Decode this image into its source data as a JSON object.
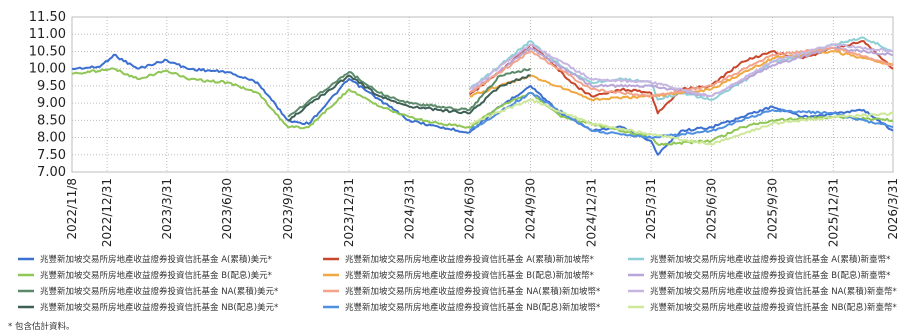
{
  "chart_data": {
    "type": "line",
    "x_range": [
      "2022-11-08",
      "2026-03-31"
    ],
    "ylim": [
      7.0,
      11.5
    ],
    "y_ticks": [
      "11.50",
      "11.00",
      "10.50",
      "10.00",
      "9.50",
      "9.00",
      "8.50",
      "8.00",
      "7.50",
      "7.00"
    ],
    "x_ticks": [
      "2022/11/8",
      "2022/12/31",
      "2023/3/31",
      "2023/6/30",
      "2023/9/30",
      "2023/12/31",
      "2024/3/31",
      "2024/6/30",
      "2024/9/30",
      "2024/12/31",
      "2025/3/31",
      "2025/6/30",
      "2025/9/30",
      "2025/12/31",
      "2026/3/31"
    ],
    "grid": true,
    "legend_position": "bottom",
    "series": [
      {
        "name": "兆豐新加坡交易所房地產收益證券投資信託基金 A(累積)美元*",
        "color": "#3b6fd0",
        "points": [
          [
            "2022-11-08",
            10.0
          ],
          [
            "2022-12-20",
            10.05
          ],
          [
            "2023-01-10",
            10.4
          ],
          [
            "2023-02-15",
            10.0
          ],
          [
            "2023-03-31",
            10.25
          ],
          [
            "2023-05-01",
            10.0
          ],
          [
            "2023-06-30",
            9.9
          ],
          [
            "2023-08-15",
            9.6
          ],
          [
            "2023-09-30",
            8.5
          ],
          [
            "2023-10-31",
            8.4
          ],
          [
            "2023-12-31",
            9.7
          ],
          [
            "2024-02-15",
            9.1
          ],
          [
            "2024-03-31",
            8.5
          ],
          [
            "2024-05-15",
            8.3
          ],
          [
            "2024-06-30",
            8.15
          ],
          [
            "2024-08-15",
            8.9
          ],
          [
            "2024-09-30",
            9.5
          ],
          [
            "2024-11-15",
            8.7
          ],
          [
            "2024-12-31",
            8.2
          ],
          [
            "2025-02-15",
            8.3
          ],
          [
            "2025-03-31",
            7.9
          ],
          [
            "2025-04-10",
            7.5
          ],
          [
            "2025-05-15",
            8.2
          ],
          [
            "2025-06-30",
            8.3
          ],
          [
            "2025-08-15",
            8.6
          ],
          [
            "2025-09-30",
            8.9
          ],
          [
            "2025-11-15",
            8.6
          ],
          [
            "2025-12-31",
            8.7
          ],
          [
            "2026-02-15",
            8.8
          ],
          [
            "2026-03-31",
            8.2
          ]
        ]
      },
      {
        "name": "兆豐新加坡交易所房地產收益證券投資信託基金 A(累積)新加坡幣*",
        "color": "#c8472c",
        "points": [
          [
            "2024-06-30",
            9.25
          ],
          [
            "2024-08-15",
            9.9
          ],
          [
            "2024-09-30",
            10.7
          ],
          [
            "2024-10-31",
            10.2
          ],
          [
            "2024-11-30",
            9.6
          ],
          [
            "2024-12-31",
            9.2
          ],
          [
            "2025-02-15",
            9.4
          ],
          [
            "2025-03-31",
            9.3
          ],
          [
            "2025-04-10",
            8.7
          ],
          [
            "2025-05-15",
            9.4
          ],
          [
            "2025-06-30",
            9.5
          ],
          [
            "2025-08-15",
            10.2
          ],
          [
            "2025-09-30",
            10.5
          ],
          [
            "2025-11-15",
            10.3
          ],
          [
            "2025-12-31",
            10.6
          ],
          [
            "2026-02-15",
            10.8
          ],
          [
            "2026-03-31",
            10.0
          ]
        ]
      },
      {
        "name": "兆豐新加坡交易所房地產收益證券投資信託基金 A(累積)新臺幣*",
        "color": "#8ecfd6",
        "points": [
          [
            "2024-06-30",
            9.4
          ],
          [
            "2024-08-15",
            10.1
          ],
          [
            "2024-09-30",
            10.8
          ],
          [
            "2024-10-31",
            10.3
          ],
          [
            "2024-11-30",
            9.9
          ],
          [
            "2024-12-31",
            9.6
          ],
          [
            "2025-02-15",
            9.7
          ],
          [
            "2025-03-31",
            9.6
          ],
          [
            "2025-04-10",
            9.1
          ],
          [
            "2025-05-15",
            9.3
          ],
          [
            "2025-06-30",
            9.1
          ],
          [
            "2025-08-15",
            9.6
          ],
          [
            "2025-09-30",
            10.2
          ],
          [
            "2025-11-15",
            10.4
          ],
          [
            "2025-12-31",
            10.7
          ],
          [
            "2026-02-15",
            10.9
          ],
          [
            "2026-03-31",
            10.5
          ]
        ]
      },
      {
        "name": "兆豐新加坡交易所房地產收益證券投資信託基金 B(配息)美元*",
        "color": "#8fc655",
        "points": [
          [
            "2022-11-08",
            9.85
          ],
          [
            "2023-01-10",
            10.0
          ],
          [
            "2023-02-15",
            9.7
          ],
          [
            "2023-03-31",
            9.95
          ],
          [
            "2023-05-01",
            9.7
          ],
          [
            "2023-06-30",
            9.6
          ],
          [
            "2023-08-15",
            9.3
          ],
          [
            "2023-09-30",
            8.3
          ],
          [
            "2023-10-31",
            8.3
          ],
          [
            "2023-12-31",
            9.4
          ],
          [
            "2024-02-15",
            8.9
          ],
          [
            "2024-03-31",
            8.6
          ],
          [
            "2024-05-15",
            8.4
          ],
          [
            "2024-06-30",
            8.3
          ],
          [
            "2024-08-15",
            8.9
          ],
          [
            "2024-09-30",
            9.3
          ],
          [
            "2024-11-15",
            8.6
          ],
          [
            "2024-12-31",
            8.4
          ],
          [
            "2025-03-31",
            8.0
          ],
          [
            "2025-04-10",
            7.8
          ],
          [
            "2025-06-30",
            7.9
          ],
          [
            "2025-08-15",
            8.3
          ],
          [
            "2025-09-30",
            8.5
          ],
          [
            "2025-12-31",
            8.6
          ],
          [
            "2026-03-31",
            8.5
          ]
        ]
      },
      {
        "name": "兆豐新加坡交易所房地產收益證券投資信託基金 B(配息)新加坡幣*",
        "color": "#f0a840",
        "points": [
          [
            "2024-06-30",
            9.2
          ],
          [
            "2024-09-30",
            9.8
          ],
          [
            "2024-12-31",
            9.1
          ],
          [
            "2025-03-31",
            9.2
          ],
          [
            "2025-06-30",
            9.4
          ],
          [
            "2025-09-30",
            10.3
          ],
          [
            "2025-12-31",
            10.5
          ],
          [
            "2026-03-31",
            10.1
          ]
        ]
      },
      {
        "name": "兆豐新加坡交易所房地產收益證券投資信託基金 B(配息)新臺幣*",
        "color": "#b9a6d8",
        "points": [
          [
            "2024-06-30",
            9.3
          ],
          [
            "2024-09-30",
            10.6
          ],
          [
            "2024-12-31",
            9.5
          ],
          [
            "2025-03-31",
            9.5
          ],
          [
            "2025-06-30",
            9.2
          ],
          [
            "2025-09-30",
            10.1
          ],
          [
            "2025-12-31",
            10.6
          ],
          [
            "2026-03-31",
            10.4
          ]
        ]
      },
      {
        "name": "兆豐新加坡交易所房地產收益證券投資信託基金 NA(累積)美元*",
        "color": "#5a8a6a",
        "points": [
          [
            "2023-09-30",
            8.6
          ],
          [
            "2023-12-31",
            9.9
          ],
          [
            "2024-02-15",
            9.3
          ],
          [
            "2024-03-31",
            9.0
          ],
          [
            "2024-05-15",
            8.9
          ],
          [
            "2024-06-30",
            8.8
          ],
          [
            "2024-08-15",
            9.8
          ],
          [
            "2024-09-30",
            10.0
          ]
        ]
      },
      {
        "name": "兆豐新加坡交易所房地產收益證券投資信託基金 NA(累積)新加坡幣*",
        "color": "#f2a38a",
        "points": [
          [
            "2024-06-30",
            9.3
          ],
          [
            "2024-09-30",
            10.5
          ],
          [
            "2024-12-31",
            9.4
          ],
          [
            "2025-03-31",
            9.2
          ],
          [
            "2025-06-30",
            9.5
          ],
          [
            "2025-09-30",
            10.4
          ],
          [
            "2025-12-31",
            10.6
          ],
          [
            "2026-03-31",
            10.1
          ]
        ]
      },
      {
        "name": "兆豐新加坡交易所房地產收益證券投資信託基金 NA(累積)新臺幣*",
        "color": "#c8b6e2",
        "points": [
          [
            "2024-06-30",
            9.4
          ],
          [
            "2024-09-30",
            10.7
          ],
          [
            "2024-12-31",
            9.7
          ],
          [
            "2025-03-31",
            9.6
          ],
          [
            "2025-06-30",
            9.2
          ],
          [
            "2025-09-30",
            10.2
          ],
          [
            "2025-12-31",
            10.7
          ],
          [
            "2026-03-31",
            10.5
          ]
        ]
      },
      {
        "name": "兆豐新加坡交易所房地產收益證券投資信託基金 NB(配息)美元*",
        "color": "#3e5f55",
        "points": [
          [
            "2023-09-30",
            8.5
          ],
          [
            "2023-12-31",
            9.8
          ],
          [
            "2024-02-15",
            9.2
          ],
          [
            "2024-03-31",
            8.9
          ],
          [
            "2024-05-15",
            8.8
          ],
          [
            "2024-06-30",
            8.7
          ],
          [
            "2024-08-15",
            9.5
          ],
          [
            "2024-09-30",
            9.8
          ]
        ]
      },
      {
        "name": "兆豐新加坡交易所房地產收益證券投資信託基金 NB(配息)新加坡幣*",
        "color": "#4f8fe0",
        "points": [
          [
            "2024-06-30",
            8.2
          ],
          [
            "2024-09-30",
            9.3
          ],
          [
            "2024-12-31",
            8.2
          ],
          [
            "2025-03-31",
            8.0
          ],
          [
            "2025-06-30",
            8.2
          ],
          [
            "2025-09-30",
            8.8
          ],
          [
            "2025-12-31",
            8.7
          ],
          [
            "2026-03-31",
            8.3
          ]
        ]
      },
      {
        "name": "兆豐新加坡交易所房地產收益證券投資信託基金 NB(配息)新臺幣*",
        "color": "#cde89a",
        "points": [
          [
            "2024-06-30",
            8.4
          ],
          [
            "2024-09-30",
            9.1
          ],
          [
            "2024-12-31",
            8.4
          ],
          [
            "2025-03-31",
            8.1
          ],
          [
            "2025-06-30",
            7.8
          ],
          [
            "2025-09-30",
            8.4
          ],
          [
            "2025-12-31",
            8.6
          ],
          [
            "2026-03-31",
            8.7
          ]
        ]
      }
    ]
  },
  "footnote": "*  包含估計資料。"
}
